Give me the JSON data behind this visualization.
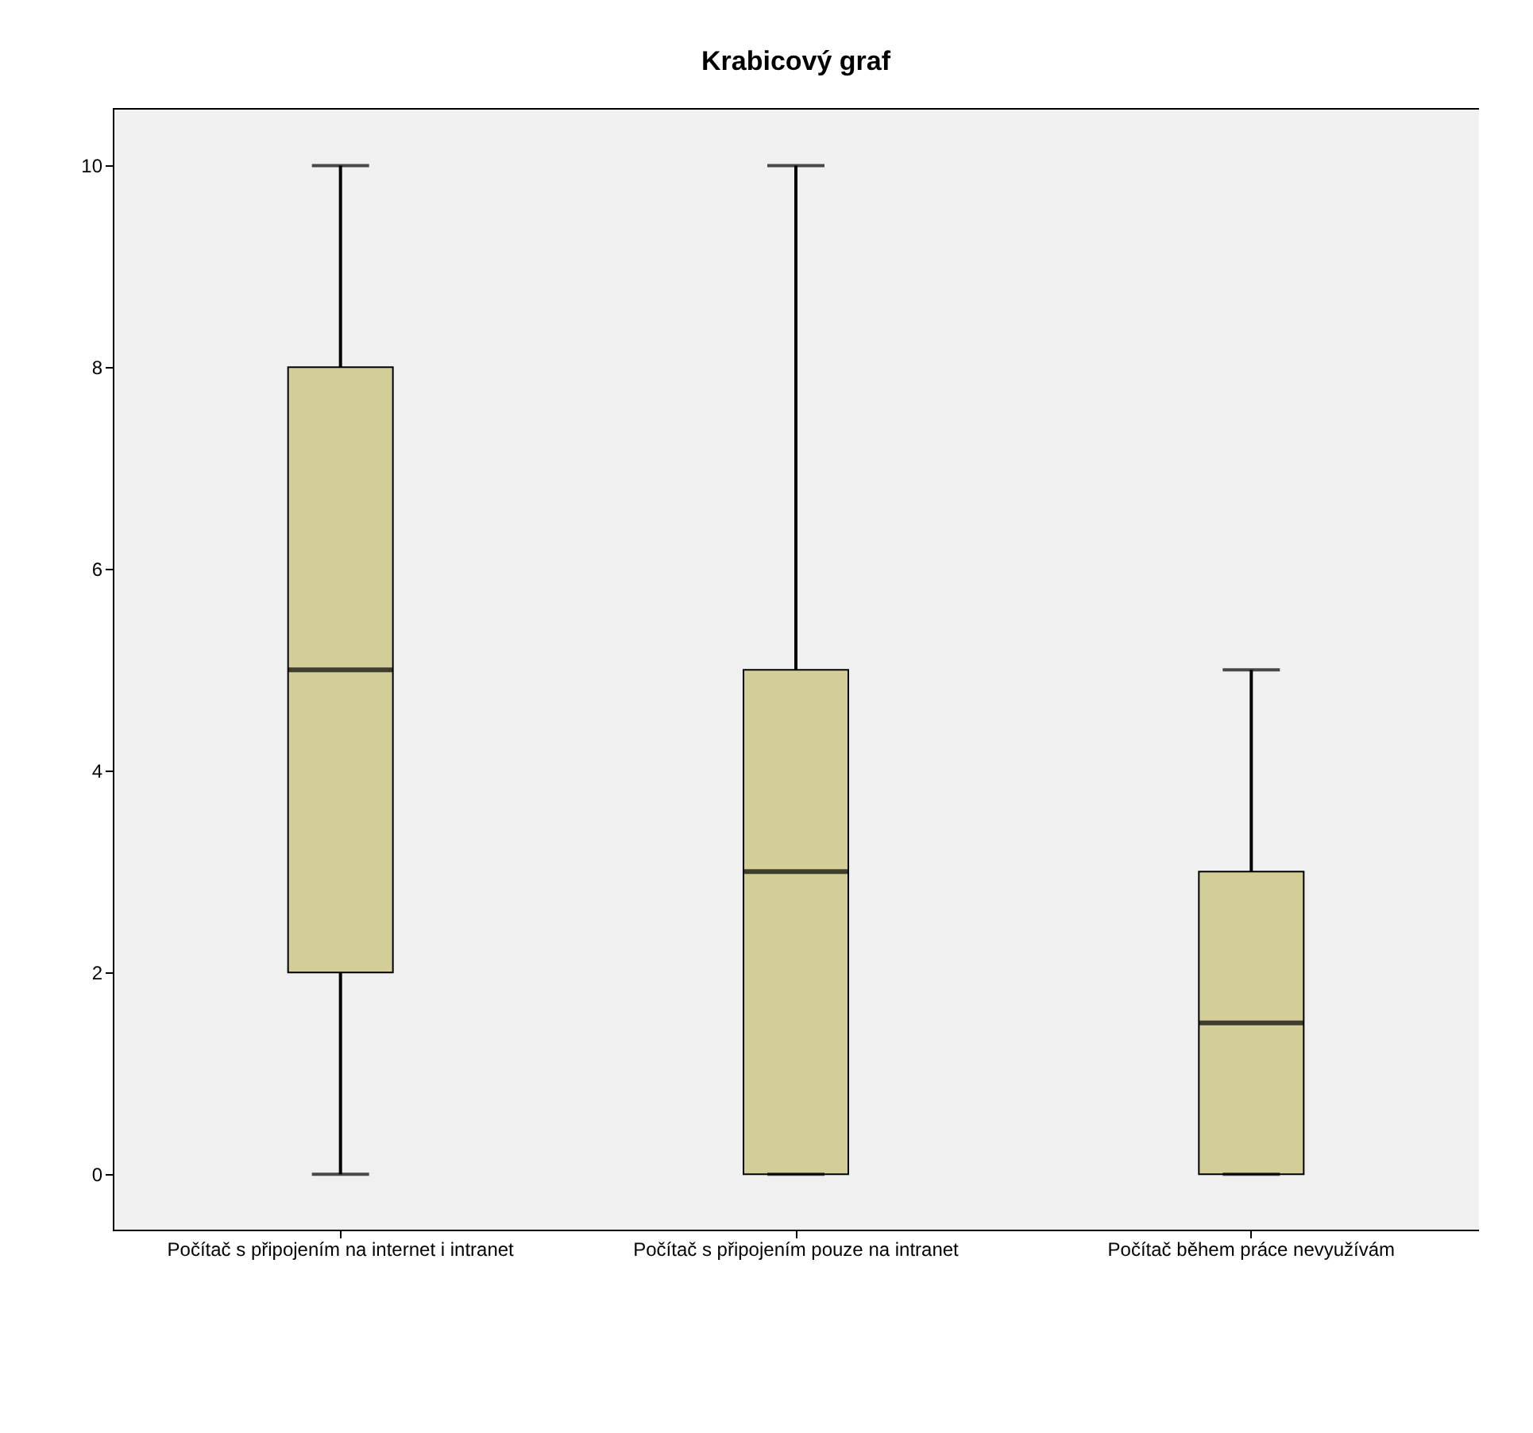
{
  "chart_data": {
    "type": "box",
    "title": "Krabicový graf",
    "categories": [
      "Počítač s připojením na internet i intranet",
      "Počítač s připojením pouze na intranet",
      "Počítač během práce nevyužívám"
    ],
    "series": [
      {
        "color": "#d3ce98",
        "boxes": [
          {
            "low": 0,
            "q1": 2,
            "median": 5,
            "q3": 8,
            "high": 10
          },
          {
            "low": 0,
            "q1": 0,
            "median": 3,
            "q3": 5,
            "high": 10
          },
          {
            "low": 0,
            "q1": 0,
            "median": 1.5,
            "q3": 3,
            "high": 5
          }
        ]
      }
    ],
    "ylim": [
      -0.55,
      10.57
    ],
    "yticks": [
      0,
      2,
      4,
      6,
      8,
      10
    ]
  }
}
